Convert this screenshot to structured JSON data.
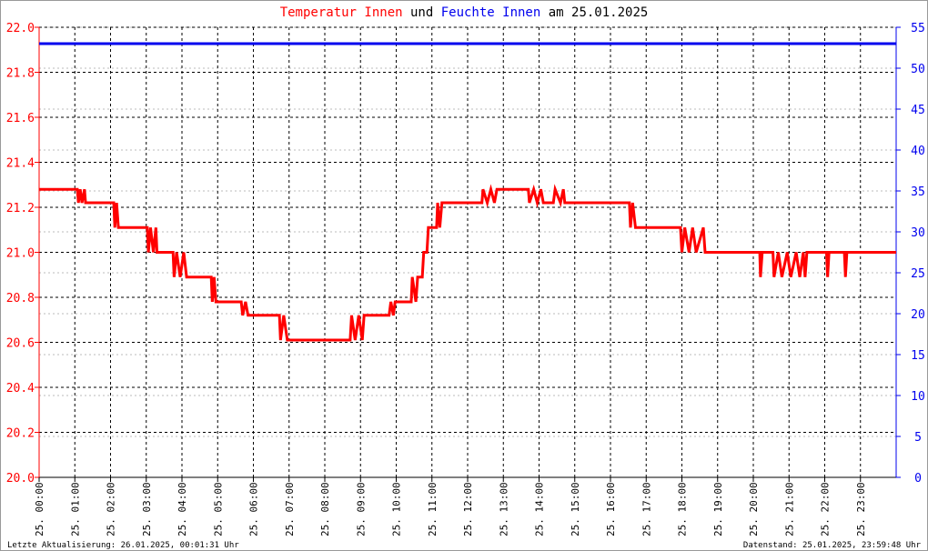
{
  "chart_data": {
    "type": "line",
    "title_connector": "und",
    "title_date": "am 25.01.2025",
    "annotations": [
      "Letzte Aktualisierung: 26.01.2025, 00:01:31 Uhr",
      "Datenstand: 25.01.2025, 23:59:48 Uhr"
    ],
    "xlim": [
      0,
      24
    ],
    "xticks": [
      {
        "value": 0,
        "label": "25. 00:00"
      },
      {
        "value": 1,
        "label": "25. 01:00"
      },
      {
        "value": 2,
        "label": "25. 02:00"
      },
      {
        "value": 3,
        "label": "25. 03:00"
      },
      {
        "value": 4,
        "label": "25. 04:00"
      },
      {
        "value": 5,
        "label": "25. 05:00"
      },
      {
        "value": 6,
        "label": "25. 06:00"
      },
      {
        "value": 7,
        "label": "25. 07:00"
      },
      {
        "value": 8,
        "label": "25. 08:00"
      },
      {
        "value": 9,
        "label": "25. 09:00"
      },
      {
        "value": 10,
        "label": "25. 10:00"
      },
      {
        "value": 11,
        "label": "25. 11:00"
      },
      {
        "value": 12,
        "label": "25. 12:00"
      },
      {
        "value": 13,
        "label": "25. 13:00"
      },
      {
        "value": 14,
        "label": "25. 14:00"
      },
      {
        "value": 15,
        "label": "25. 15:00"
      },
      {
        "value": 16,
        "label": "25. 16:00"
      },
      {
        "value": 17,
        "label": "25. 17:00"
      },
      {
        "value": 18,
        "label": "25. 18:00"
      },
      {
        "value": 19,
        "label": "25. 19:00"
      },
      {
        "value": 20,
        "label": "25. 20:00"
      },
      {
        "value": 21,
        "label": "25. 21:00"
      },
      {
        "value": 22,
        "label": "25. 22:00"
      },
      {
        "value": 23,
        "label": "25. 23:00"
      }
    ],
    "ylim": [
      20,
      22
    ],
    "yticks": [
      {
        "value": 20,
        "label": "20.0"
      },
      {
        "value": 20.2,
        "label": "20.2"
      },
      {
        "value": 20.4,
        "label": "20.4"
      },
      {
        "value": 20.6,
        "label": "20.6"
      },
      {
        "value": 20.8,
        "label": "20.8"
      },
      {
        "value": 21,
        "label": "21.0"
      },
      {
        "value": 21.2,
        "label": "21.2"
      },
      {
        "value": 21.4,
        "label": "21.4"
      },
      {
        "value": 21.6,
        "label": "21.6"
      },
      {
        "value": 21.8,
        "label": "21.8"
      },
      {
        "value": 22,
        "label": "22.0"
      }
    ],
    "y2lim": [
      0,
      55
    ],
    "y2ticks": [
      0,
      5,
      10,
      15,
      20,
      25,
      30,
      35,
      40,
      45,
      50,
      55
    ],
    "grid": true,
    "series": [
      {
        "name": "Temperatur Innen",
        "color": "#ff0000",
        "x": [
          0,
          1.07,
          1.1,
          1.15,
          1.2,
          1.27,
          1.3,
          2.09,
          2.12,
          2.17,
          2.22,
          3.03,
          3.06,
          3.12,
          3.2,
          3.27,
          3.3,
          3.75,
          3.78,
          3.85,
          3.95,
          4.05,
          4.13,
          4.82,
          4.85,
          4.9,
          4.95,
          5.66,
          5.7,
          5.78,
          5.85,
          6.73,
          6.76,
          6.85,
          6.95,
          8.71,
          8.75,
          8.85,
          8.95,
          9.05,
          9.1,
          9.8,
          9.85,
          9.92,
          9.97,
          10.42,
          10.45,
          10.55,
          10.6,
          10.73,
          10.77,
          10.86,
          10.9,
          11.13,
          11.16,
          11.22,
          11.28,
          12.4,
          12.43,
          12.55,
          12.65,
          12.75,
          12.82,
          13.7,
          13.73,
          13.85,
          13.95,
          14.05,
          14.12,
          14.4,
          14.45,
          14.6,
          14.68,
          14.72,
          16.53,
          16.56,
          16.62,
          16.7,
          17.96,
          18,
          18.08,
          18.2,
          18.3,
          18.4,
          18.6,
          18.65,
          20.18,
          20.2,
          20.25,
          20.55,
          20.58,
          20.7,
          20.8,
          20.95,
          21.05,
          21.2,
          21.3,
          21.4,
          21.45,
          21.5,
          22.05,
          22.08,
          22.12,
          22.55,
          22.58,
          22.62,
          24
        ],
        "values": [
          21.28,
          21.28,
          21.22,
          21.28,
          21.22,
          21.28,
          21.22,
          21.22,
          21.11,
          21.22,
          21.11,
          21.11,
          21.0,
          21.11,
          21.0,
          21.11,
          21.0,
          21.0,
          20.89,
          21.0,
          20.89,
          21.0,
          20.89,
          20.89,
          20.78,
          20.89,
          20.78,
          20.78,
          20.72,
          20.78,
          20.72,
          20.72,
          20.61,
          20.72,
          20.61,
          20.61,
          20.72,
          20.61,
          20.72,
          20.61,
          20.72,
          20.72,
          20.78,
          20.72,
          20.78,
          20.78,
          20.89,
          20.78,
          20.89,
          20.89,
          21.0,
          21.0,
          21.11,
          21.11,
          21.22,
          21.11,
          21.22,
          21.22,
          21.28,
          21.22,
          21.28,
          21.22,
          21.28,
          21.28,
          21.22,
          21.28,
          21.22,
          21.28,
          21.22,
          21.22,
          21.28,
          21.22,
          21.28,
          21.22,
          21.22,
          21.11,
          21.22,
          21.11,
          21.11,
          21.0,
          21.11,
          21.0,
          21.11,
          21.0,
          21.11,
          21.0,
          21.0,
          20.89,
          21.0,
          21.0,
          20.89,
          21.0,
          20.89,
          21.0,
          20.89,
          21.0,
          20.89,
          21.0,
          20.89,
          21.0,
          21.0,
          20.89,
          21.0,
          21.0,
          20.89,
          21.0,
          21.0
        ]
      },
      {
        "name": "Feuchte Innen",
        "color": "#0000ee",
        "axis": "y2",
        "x": [
          0,
          24
        ],
        "values": [
          53,
          53
        ]
      }
    ]
  }
}
